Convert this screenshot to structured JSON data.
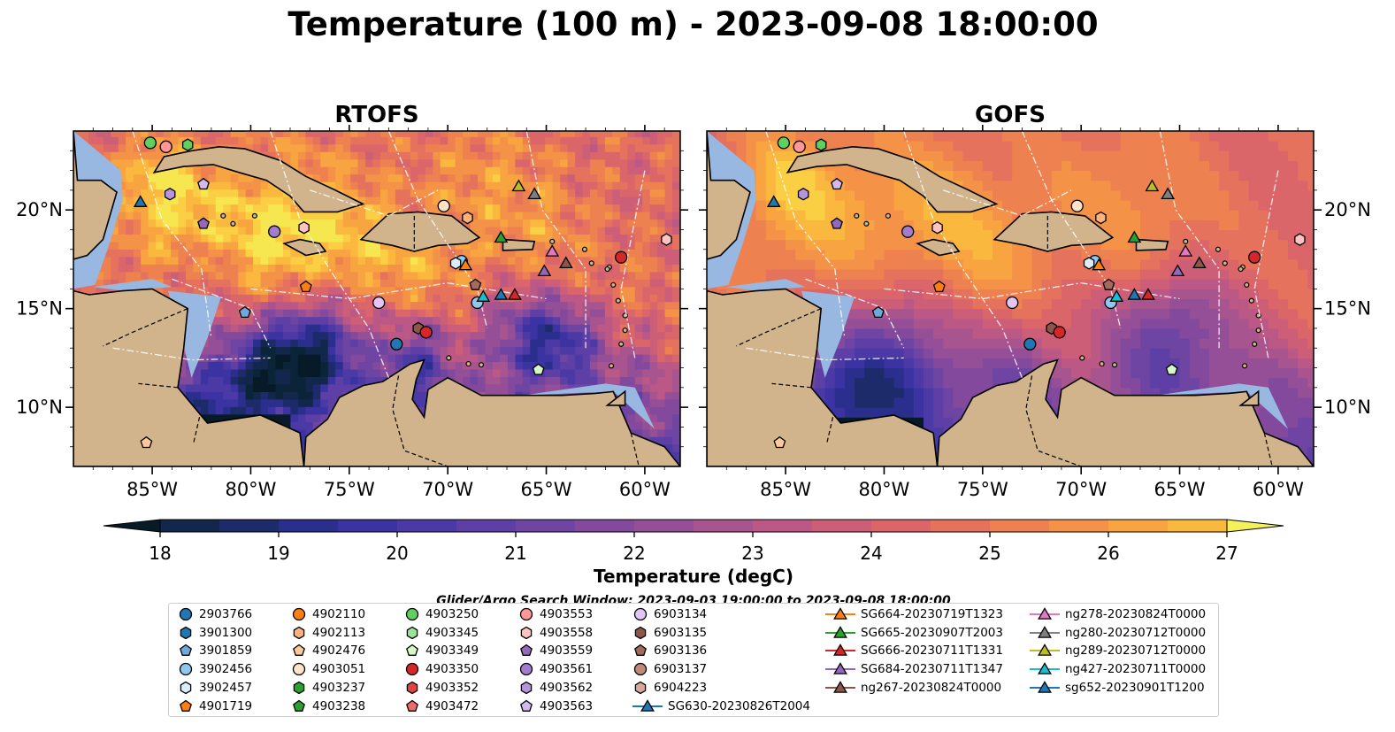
{
  "title": "Temperature (100 m) - 2023-09-08 18:00:00",
  "panels": [
    {
      "title": "RTOFS",
      "style": "fine"
    },
    {
      "title": "GOFS",
      "style": "smooth"
    }
  ],
  "lon_ticks": [
    "85°W",
    "80°W",
    "75°W",
    "70°W",
    "65°W",
    "60°W"
  ],
  "lon_values": [
    -85,
    -80,
    -75,
    -70,
    -65,
    -60
  ],
  "lat_ticks": [
    "20°N",
    "15°N",
    "10°N"
  ],
  "lat_values": [
    20,
    15,
    10
  ],
  "extent": {
    "lon": [
      -89,
      -58.2
    ],
    "lat": [
      7,
      24
    ]
  },
  "colorbar": {
    "label": "Temperature (degC)",
    "min": 18,
    "max": 27,
    "step": 0.5,
    "ticks": [
      "18",
      "19",
      "20",
      "21",
      "22",
      "23",
      "24",
      "25",
      "26",
      "27"
    ],
    "colors": [
      "#0b2438",
      "#13274c",
      "#1d2b6a",
      "#2a2f8e",
      "#3c33a3",
      "#4b3aa6",
      "#5d3fa6",
      "#6e45a3",
      "#82499d",
      "#954f97",
      "#a8548e",
      "#bb5885",
      "#cc5e78",
      "#da666a",
      "#e5725c",
      "#ee8150",
      "#f49247",
      "#f8a441",
      "#fbb83f",
      "#fbcf44",
      "#f6e64f"
    ],
    "under_color": "#061a28",
    "over_color": "#f4f15a"
  },
  "annotations": {
    "search_window": "Glider/Argo Search Window: 2023-09-03 19:00:00 to 2023-09-08 18:00:00"
  },
  "legend": {
    "columns": [
      [
        {
          "label": "2903766",
          "color": "#1f77b4",
          "shape": "circle"
        },
        {
          "label": "3901300",
          "color": "#1f77b4",
          "shape": "hexagon"
        },
        {
          "label": "3901859",
          "color": "#6fa8dc",
          "shape": "pentagon"
        },
        {
          "label": "3902456",
          "color": "#8ec8f0",
          "shape": "circle"
        },
        {
          "label": "3902457",
          "color": "#d9eefc",
          "shape": "hexagon"
        },
        {
          "label": "4901719",
          "color": "#ff7f0e",
          "shape": "pentagon"
        }
      ],
      [
        {
          "label": "4902110",
          "color": "#ff7f0e",
          "shape": "circle"
        },
        {
          "label": "4902113",
          "color": "#ffb279",
          "shape": "hexagon"
        },
        {
          "label": "4902476",
          "color": "#ffc89a",
          "shape": "pentagon"
        },
        {
          "label": "4903051",
          "color": "#ffe3c8",
          "shape": "circle"
        },
        {
          "label": "4903237",
          "color": "#2ca02c",
          "shape": "hexagon"
        },
        {
          "label": "4903238",
          "color": "#2ca02c",
          "shape": "pentagon"
        }
      ],
      [
        {
          "label": "4903250",
          "color": "#5fcf5f",
          "shape": "circle"
        },
        {
          "label": "4903345",
          "color": "#98e598",
          "shape": "hexagon"
        },
        {
          "label": "4903349",
          "color": "#d6f7c9",
          "shape": "pentagon"
        },
        {
          "label": "4903350",
          "color": "#d62728",
          "shape": "circle"
        },
        {
          "label": "4903352",
          "color": "#e04545",
          "shape": "hexagon"
        },
        {
          "label": "4903472",
          "color": "#f06a6a",
          "shape": "pentagon"
        }
      ],
      [
        {
          "label": "4903553",
          "color": "#ff9896",
          "shape": "circle"
        },
        {
          "label": "4903558",
          "color": "#ffc4c2",
          "shape": "hexagon"
        },
        {
          "label": "4903559",
          "color": "#9467bd",
          "shape": "pentagon"
        },
        {
          "label": "4903561",
          "color": "#a27ccd",
          "shape": "circle"
        },
        {
          "label": "4903562",
          "color": "#b595dc",
          "shape": "hexagon"
        },
        {
          "label": "4903563",
          "color": "#d2baf0",
          "shape": "pentagon"
        }
      ],
      [
        {
          "label": "6903134",
          "color": "#e5c4f7",
          "shape": "circle"
        },
        {
          "label": "6903135",
          "color": "#8c564b",
          "shape": "hexagon"
        },
        {
          "label": "6903136",
          "color": "#a26b5c",
          "shape": "pentagon"
        },
        {
          "label": "6903137",
          "color": "#c08a7a",
          "shape": "circle"
        },
        {
          "label": "6904223",
          "color": "#d8a89a",
          "shape": "hexagon"
        },
        {
          "label": "SG630-20230826T2004",
          "color": "#1f77b4",
          "shape": "triangle"
        }
      ],
      [
        {
          "label": "SG664-20230719T1323",
          "color": "#ff7f0e",
          "shape": "triangle"
        },
        {
          "label": "SG665-20230907T2003",
          "color": "#2ca02c",
          "shape": "triangle"
        },
        {
          "label": "SG666-20230711T1331",
          "color": "#d62728",
          "shape": "triangle"
        },
        {
          "label": "SG684-20230711T1347",
          "color": "#9467bd",
          "shape": "triangle"
        },
        {
          "label": "ng267-20230824T0000",
          "color": "#8c564b",
          "shape": "triangle"
        }
      ],
      [
        {
          "label": "ng278-20230824T0000",
          "color": "#e377c2",
          "shape": "triangle"
        },
        {
          "label": "ng280-20230712T0000",
          "color": "#7f7f7f",
          "shape": "triangle"
        },
        {
          "label": "ng289-20230712T0000",
          "color": "#bcbd22",
          "shape": "triangle"
        },
        {
          "label": "ng427-20230711T0000",
          "color": "#17becf",
          "shape": "triangle"
        },
        {
          "label": "sg652-20230901T1200",
          "color": "#1f77b4",
          "shape": "triangle"
        }
      ]
    ]
  },
  "markers": [
    {
      "lon": -85.1,
      "lat": 23.4,
      "color": "#5fcf5f",
      "shape": "circle"
    },
    {
      "lon": -84.3,
      "lat": 23.2,
      "color": "#ff9896",
      "shape": "circle"
    },
    {
      "lon": -83.2,
      "lat": 23.3,
      "color": "#5fcf5f",
      "shape": "hexagon"
    },
    {
      "lon": -85.6,
      "lat": 20.4,
      "color": "#1f77b4",
      "shape": "triangle"
    },
    {
      "lon": -84.1,
      "lat": 20.8,
      "color": "#b595dc",
      "shape": "hexagon"
    },
    {
      "lon": -82.4,
      "lat": 21.3,
      "color": "#d2baf0",
      "shape": "pentagon"
    },
    {
      "lon": -82.4,
      "lat": 19.3,
      "color": "#9467bd",
      "shape": "pentagon"
    },
    {
      "lon": -78.8,
      "lat": 18.9,
      "color": "#a27ccd",
      "shape": "circle"
    },
    {
      "lon": -77.3,
      "lat": 19.1,
      "color": "#ffc4c2",
      "shape": "hexagon"
    },
    {
      "lon": -77.2,
      "lat": 16.1,
      "color": "#ff7f0e",
      "shape": "pentagon"
    },
    {
      "lon": -80.3,
      "lat": 14.8,
      "color": "#6fa8dc",
      "shape": "pentagon"
    },
    {
      "lon": -85.3,
      "lat": 8.2,
      "color": "#ffc89a",
      "shape": "pentagon"
    },
    {
      "lon": -73.5,
      "lat": 15.3,
      "color": "#e5c4f7",
      "shape": "circle"
    },
    {
      "lon": -72.6,
      "lat": 13.2,
      "color": "#1f77b4",
      "shape": "circle"
    },
    {
      "lon": -71.5,
      "lat": 14.0,
      "color": "#8c564b",
      "shape": "hexagon"
    },
    {
      "lon": -71.1,
      "lat": 13.8,
      "color": "#d62728",
      "shape": "circle"
    },
    {
      "lon": -70.2,
      "lat": 20.2,
      "color": "#ffe3c8",
      "shape": "circle"
    },
    {
      "lon": -69.0,
      "lat": 19.6,
      "color": "#ffb279",
      "shape": "hexagon"
    },
    {
      "lon": -69.3,
      "lat": 17.4,
      "color": "#8ec8f0",
      "shape": "circle"
    },
    {
      "lon": -69.6,
      "lat": 17.3,
      "color": "#d9eefc",
      "shape": "hexagon"
    },
    {
      "lon": -69.1,
      "lat": 17.2,
      "color": "#ff7f0e",
      "shape": "triangle"
    },
    {
      "lon": -68.6,
      "lat": 16.2,
      "color": "#a26b5c",
      "shape": "pentagon"
    },
    {
      "lon": -68.5,
      "lat": 15.3,
      "color": "#8ec8f0",
      "shape": "circle"
    },
    {
      "lon": -68.2,
      "lat": 15.6,
      "color": "#17becf",
      "shape": "triangle"
    },
    {
      "lon": -67.3,
      "lat": 15.7,
      "color": "#1f77b4",
      "shape": "triangle"
    },
    {
      "lon": -66.6,
      "lat": 15.7,
      "color": "#d62728",
      "shape": "triangle"
    },
    {
      "lon": -67.3,
      "lat": 18.6,
      "color": "#2ca02c",
      "shape": "triangle"
    },
    {
      "lon": -66.4,
      "lat": 21.2,
      "color": "#bcbd22",
      "shape": "triangle"
    },
    {
      "lon": -65.6,
      "lat": 20.8,
      "color": "#7f7f7f",
      "shape": "triangle"
    },
    {
      "lon": -65.1,
      "lat": 16.9,
      "color": "#9467bd",
      "shape": "triangle"
    },
    {
      "lon": -64.7,
      "lat": 17.9,
      "color": "#e377c2",
      "shape": "triangle"
    },
    {
      "lon": -64.0,
      "lat": 17.3,
      "color": "#8c564b",
      "shape": "triangle"
    },
    {
      "lon": -65.4,
      "lat": 11.9,
      "color": "#d6f7c9",
      "shape": "pentagon"
    },
    {
      "lon": -61.2,
      "lat": 17.6,
      "color": "#d62728",
      "shape": "circle"
    },
    {
      "lon": -58.9,
      "lat": 18.5,
      "color": "#ffc4c2",
      "shape": "hexagon"
    }
  ]
}
